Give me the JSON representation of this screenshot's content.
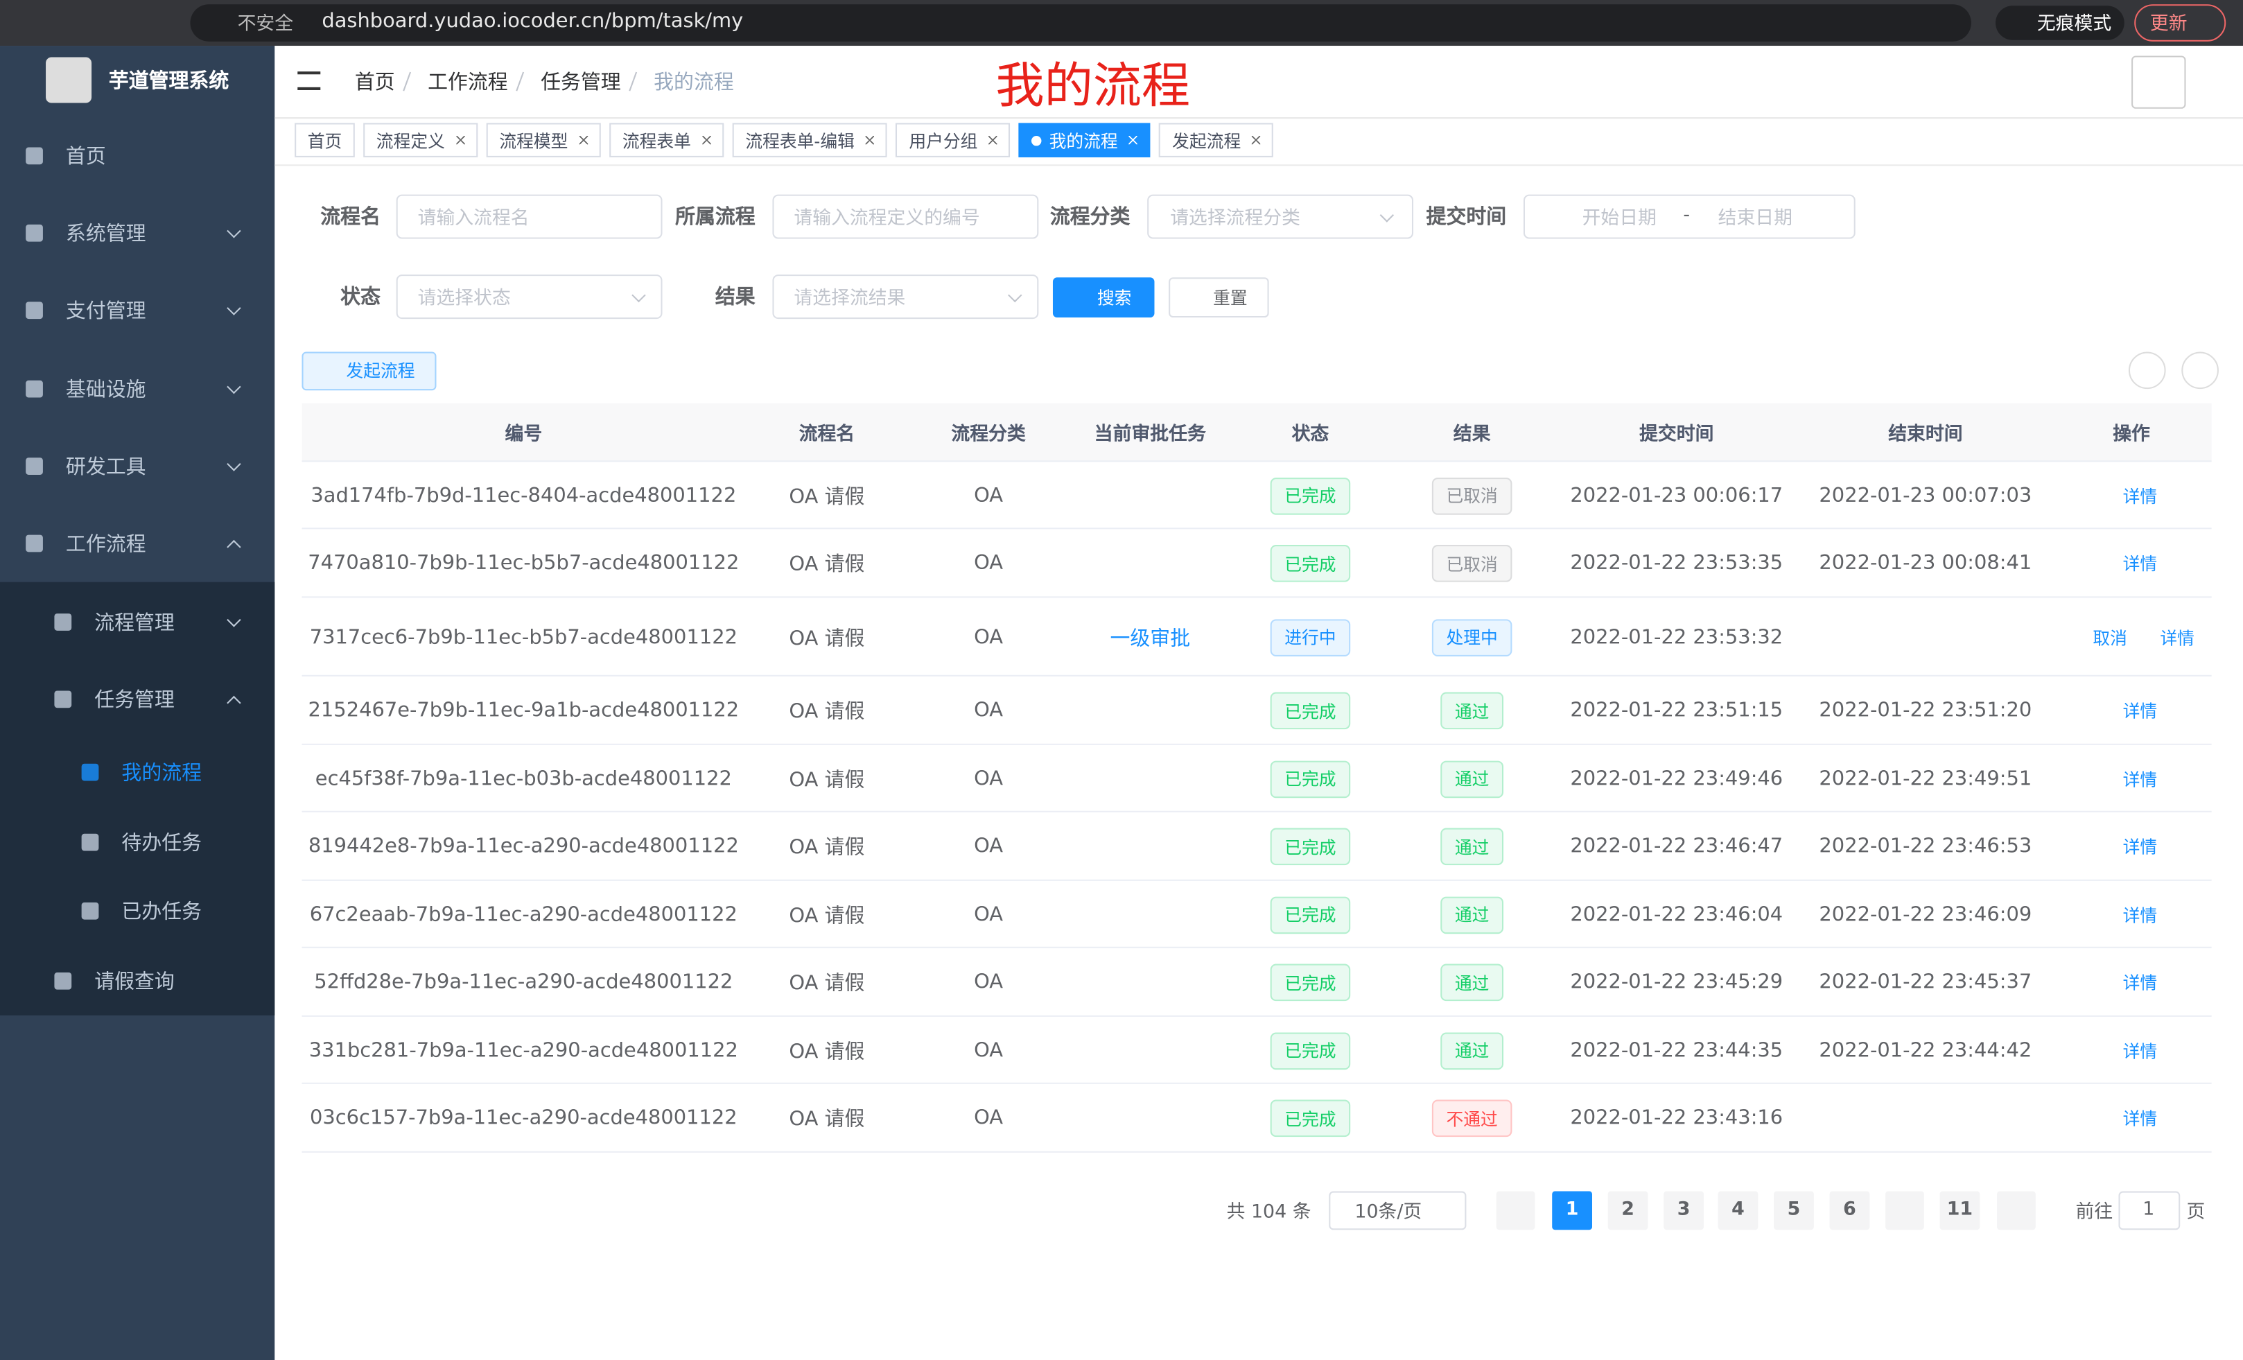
{
  "browser": {
    "security": "不安全",
    "url": "dashboard.yudao.iocoder.cn/bpm/task/my",
    "incognito": "无痕模式",
    "update": "更新"
  },
  "sidebar": {
    "title": "芋道管理系统",
    "menu": [
      "首页",
      "系统管理",
      "支付管理",
      "基础设施",
      "研发工具",
      "工作流程",
      "流程管理",
      "任务管理",
      "我的流程",
      "待办任务",
      "已办任务",
      "请假查询"
    ]
  },
  "breadcrumb": [
    "首页",
    "工作流程",
    "任务管理",
    "我的流程"
  ],
  "annotation": "我的流程",
  "tags": [
    "首页",
    "流程定义",
    "流程模型",
    "流程表单",
    "流程表单-编辑",
    "用户分组",
    "我的流程",
    "发起流程"
  ],
  "form": {
    "labels": [
      "流程名",
      "所属流程",
      "流程分类",
      "提交时间",
      "状态",
      "结果"
    ],
    "placeholders": [
      "请输入流程名",
      "请输入流程定义的编号",
      "请选择流程分类",
      "开始日期",
      "结束日期",
      "请选择状态",
      "请选择流结果"
    ],
    "date_separator": "-"
  },
  "buttons": {
    "search": "搜索",
    "reset": "重置",
    "create": "发起流程"
  },
  "table": {
    "headers": [
      "编号",
      "流程名",
      "流程分类",
      "当前审批任务",
      "状态",
      "结果",
      "提交时间",
      "结束时间",
      "操作"
    ],
    "rows": [
      [
        "3ad174fb-7b9d-11ec-8404-acde48001122",
        "OA 请假",
        "OA",
        null,
        {
          "text": "已完成",
          "color": "#13ce66"
        },
        {
          "text": "已取消",
          "color": "#909399"
        },
        "2022-01-23 00:06:17",
        "2022-01-23 00:07:03",
        [
          "详情"
        ]
      ],
      [
        "7470a810-7b9b-11ec-b5b7-acde48001122",
        "OA 请假",
        "OA",
        null,
        {
          "text": "已完成",
          "color": "#13ce66"
        },
        {
          "text": "已取消",
          "color": "#909399"
        },
        "2022-01-22 23:53:35",
        "2022-01-23 00:08:41",
        [
          "详情"
        ]
      ],
      [
        "7317cec6-7b9b-11ec-b5b7-acde48001122",
        "OA 请假",
        "OA",
        "一级审批",
        {
          "text": "进行中",
          "color": "#1890ff"
        },
        {
          "text": "处理中",
          "color": "#1890ff"
        },
        "2022-01-22 23:53:32",
        null,
        [
          "取消",
          "详情"
        ]
      ],
      [
        "2152467e-7b9b-11ec-9a1b-acde48001122",
        "OA 请假",
        "OA",
        null,
        {
          "text": "已完成",
          "color": "#13ce66"
        },
        {
          "text": "通过",
          "color": "#13ce66"
        },
        "2022-01-22 23:51:15",
        "2022-01-22 23:51:20",
        [
          "详情"
        ]
      ],
      [
        "ec45f38f-7b9a-11ec-b03b-acde48001122",
        "OA 请假",
        "OA",
        null,
        {
          "text": "已完成",
          "color": "#13ce66"
        },
        {
          "text": "通过",
          "color": "#13ce66"
        },
        "2022-01-22 23:49:46",
        "2022-01-22 23:49:51",
        [
          "详情"
        ]
      ],
      [
        "819442e8-7b9a-11ec-a290-acde48001122",
        "OA 请假",
        "OA",
        null,
        {
          "text": "已完成",
          "color": "#13ce66"
        },
        {
          "text": "通过",
          "color": "#13ce66"
        },
        "2022-01-22 23:46:47",
        "2022-01-22 23:46:53",
        [
          "详情"
        ]
      ],
      [
        "67c2eaab-7b9a-11ec-a290-acde48001122",
        "OA 请假",
        "OA",
        null,
        {
          "text": "已完成",
          "color": "#13ce66"
        },
        {
          "text": "通过",
          "color": "#13ce66"
        },
        "2022-01-22 23:46:04",
        "2022-01-22 23:46:09",
        [
          "详情"
        ]
      ],
      [
        "52ffd28e-7b9a-11ec-a290-acde48001122",
        "OA 请假",
        "OA",
        null,
        {
          "text": "已完成",
          "color": "#13ce66"
        },
        {
          "text": "通过",
          "color": "#13ce66"
        },
        "2022-01-22 23:45:29",
        "2022-01-22 23:45:37",
        [
          "详情"
        ]
      ],
      [
        "331bc281-7b9a-11ec-a290-acde48001122",
        "OA 请假",
        "OA",
        null,
        {
          "text": "已完成",
          "color": "#13ce66"
        },
        {
          "text": "通过",
          "color": "#13ce66"
        },
        "2022-01-22 23:44:35",
        "2022-01-22 23:44:42",
        [
          "详情"
        ]
      ],
      [
        "03c6c157-7b9a-11ec-a290-acde48001122",
        "OA 请假",
        "OA",
        null,
        {
          "text": "已完成",
          "color": "#13ce66"
        },
        {
          "text": "不通过",
          "color": "#ff4949"
        },
        "2022-01-22 23:43:16",
        null,
        [
          "详情"
        ]
      ]
    ]
  },
  "pagination": {
    "total": "共 104 条",
    "page_size": "10条/页",
    "pages": [
      1,
      2,
      3,
      4,
      5,
      6,
      11
    ],
    "goto": "前往",
    "goto_value": 1,
    "unit": "页"
  }
}
